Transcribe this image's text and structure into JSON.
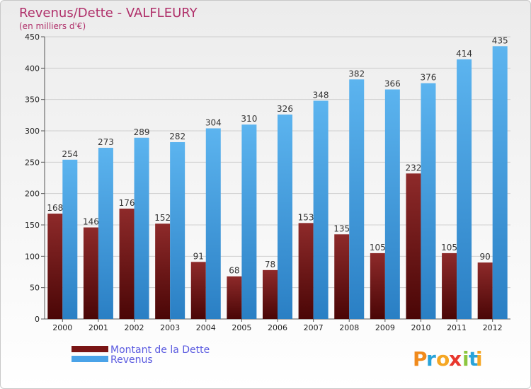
{
  "chart_data": {
    "type": "bar",
    "title": "Revenus/Dette - VALFLEURY",
    "subtitle": "(en milliers d'€)",
    "categories": [
      "2000",
      "2001",
      "2002",
      "2003",
      "2004",
      "2005",
      "2006",
      "2007",
      "2008",
      "2009",
      "2010",
      "2011",
      "2012"
    ],
    "series": [
      {
        "name": "Montant de la Dette",
        "color": "#7a1616",
        "values": [
          168,
          146,
          176,
          152,
          91,
          68,
          78,
          153,
          135,
          105,
          232,
          105,
          90
        ]
      },
      {
        "name": "Revenus",
        "color": "#4aa3e8",
        "values": [
          254,
          273,
          289,
          282,
          304,
          310,
          326,
          348,
          382,
          366,
          376,
          414,
          435
        ]
      }
    ],
    "ylim": [
      0,
      450
    ],
    "yticks": [
      0,
      50,
      100,
      150,
      200,
      250,
      300,
      350,
      400,
      450
    ],
    "grid": true,
    "legend": "bottom-left"
  },
  "brand": {
    "letters": [
      "P",
      "r",
      "o",
      "x",
      "i",
      "t",
      "i"
    ],
    "colors": [
      "#f08a1c",
      "#29a3d9",
      "#f5a623",
      "#e8372d",
      "#8cc63f",
      "#29a3d9",
      "#f5a623"
    ]
  }
}
